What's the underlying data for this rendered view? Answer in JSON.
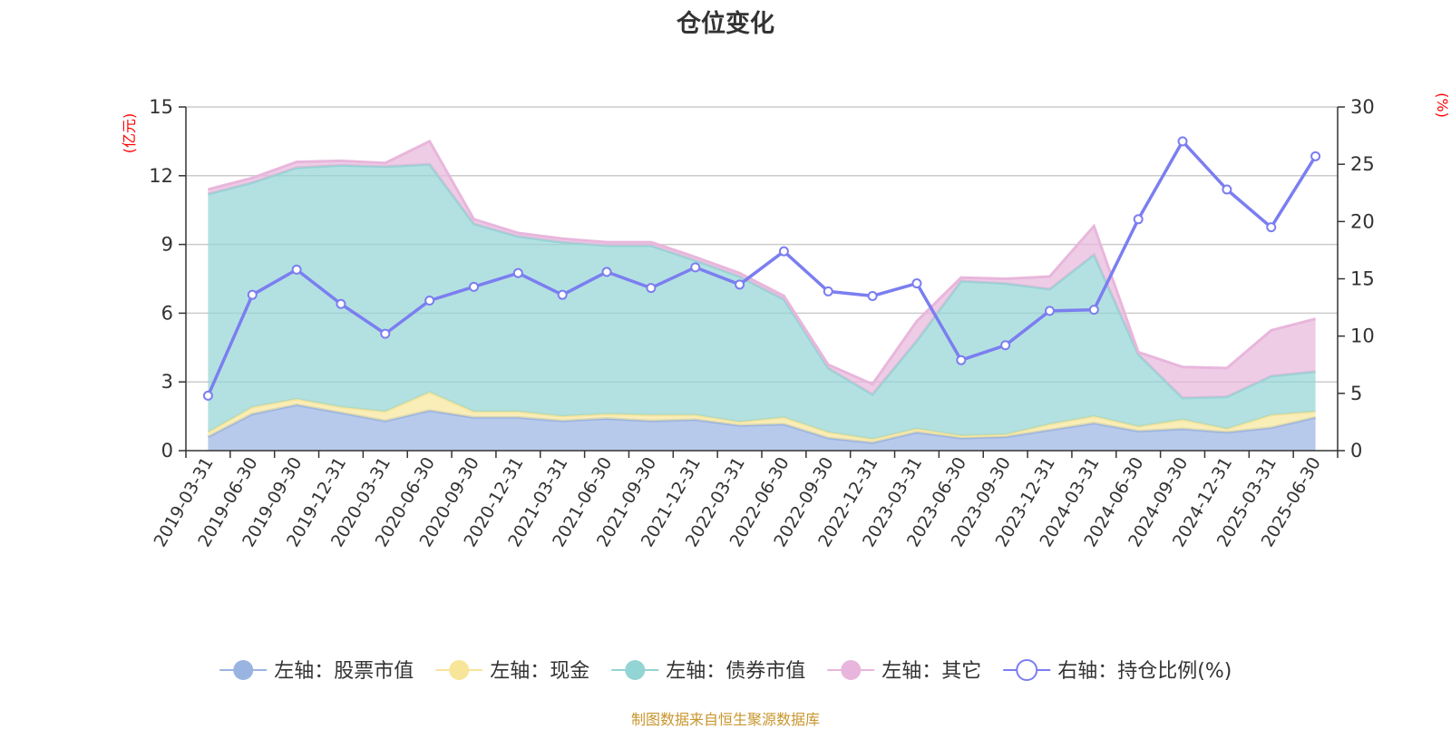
{
  "chart_data": {
    "type": "area",
    "title": "仓位变化",
    "y_left_unit": "(亿元)",
    "y_right_unit": "(%)",
    "ylim_left": [
      0,
      15
    ],
    "yticks_left": [
      0,
      3,
      6,
      9,
      12,
      15
    ],
    "ylim_right": [
      0,
      30
    ],
    "yticks_right": [
      0,
      5,
      10,
      15,
      20,
      25,
      30
    ],
    "grid": "horizontal",
    "legend_position": "bottom",
    "categories": [
      "2019-03-31",
      "2019-06-30",
      "2019-09-30",
      "2019-12-31",
      "2020-03-31",
      "2020-06-30",
      "2020-09-30",
      "2020-12-31",
      "2021-03-31",
      "2021-06-30",
      "2021-09-30",
      "2021-12-31",
      "2022-03-31",
      "2022-06-30",
      "2022-09-30",
      "2022-12-31",
      "2023-03-31",
      "2023-06-30",
      "2023-09-30",
      "2023-12-31",
      "2024-03-31",
      "2024-06-30",
      "2024-09-30",
      "2024-12-31",
      "2025-03-31",
      "2025-06-30"
    ],
    "series": [
      {
        "name": "左轴：股票市值",
        "axis": "left",
        "kind": "stacked-area",
        "color": "#9ab4e2",
        "values": [
          0.6,
          1.6,
          2.0,
          1.65,
          1.3,
          1.75,
          1.45,
          1.45,
          1.3,
          1.4,
          1.3,
          1.35,
          1.1,
          1.15,
          0.55,
          0.35,
          0.8,
          0.55,
          0.6,
          0.9,
          1.2,
          0.85,
          0.95,
          0.8,
          1.0,
          1.45
        ]
      },
      {
        "name": "左轴：现金",
        "axis": "left",
        "kind": "stacked-area",
        "color": "#f7e59a",
        "values": [
          0.2,
          0.3,
          0.25,
          0.25,
          0.4,
          0.8,
          0.25,
          0.25,
          0.2,
          0.2,
          0.25,
          0.2,
          0.15,
          0.3,
          0.25,
          0.15,
          0.15,
          0.1,
          0.1,
          0.25,
          0.3,
          0.2,
          0.4,
          0.15,
          0.55,
          0.25
        ]
      },
      {
        "name": "左轴：债券市值",
        "axis": "left",
        "kind": "stacked-area",
        "color": "#93d4d4",
        "values": [
          10.4,
          9.8,
          10.1,
          10.55,
          10.7,
          9.95,
          8.2,
          7.65,
          7.6,
          7.35,
          7.4,
          6.75,
          6.35,
          5.15,
          2.8,
          1.95,
          3.85,
          6.75,
          6.6,
          5.9,
          7.05,
          3.15,
          0.95,
          1.4,
          1.7,
          1.75
        ]
      },
      {
        "name": "左轴：其它",
        "axis": "left",
        "kind": "stacked-area",
        "color": "#e8b6dc",
        "values": [
          0.2,
          0.2,
          0.25,
          0.2,
          0.15,
          1.0,
          0.2,
          0.15,
          0.15,
          0.15,
          0.15,
          0.15,
          0.15,
          0.15,
          0.15,
          0.45,
          0.85,
          0.15,
          0.2,
          0.55,
          1.25,
          0.1,
          1.35,
          1.25,
          2.0,
          2.3
        ]
      },
      {
        "name": "右轴：持仓比例(%)",
        "axis": "right",
        "kind": "line",
        "color": "#7b7ef0",
        "values": [
          4.8,
          13.6,
          15.8,
          12.8,
          10.2,
          13.1,
          14.3,
          15.5,
          13.6,
          15.6,
          14.2,
          16.0,
          14.5,
          17.4,
          13.9,
          13.5,
          14.6,
          7.9,
          9.2,
          12.2,
          12.3,
          20.2,
          27.0,
          22.8,
          19.5,
          25.7
        ]
      }
    ]
  },
  "source_note": "制图数据来自恒生聚源数据库"
}
